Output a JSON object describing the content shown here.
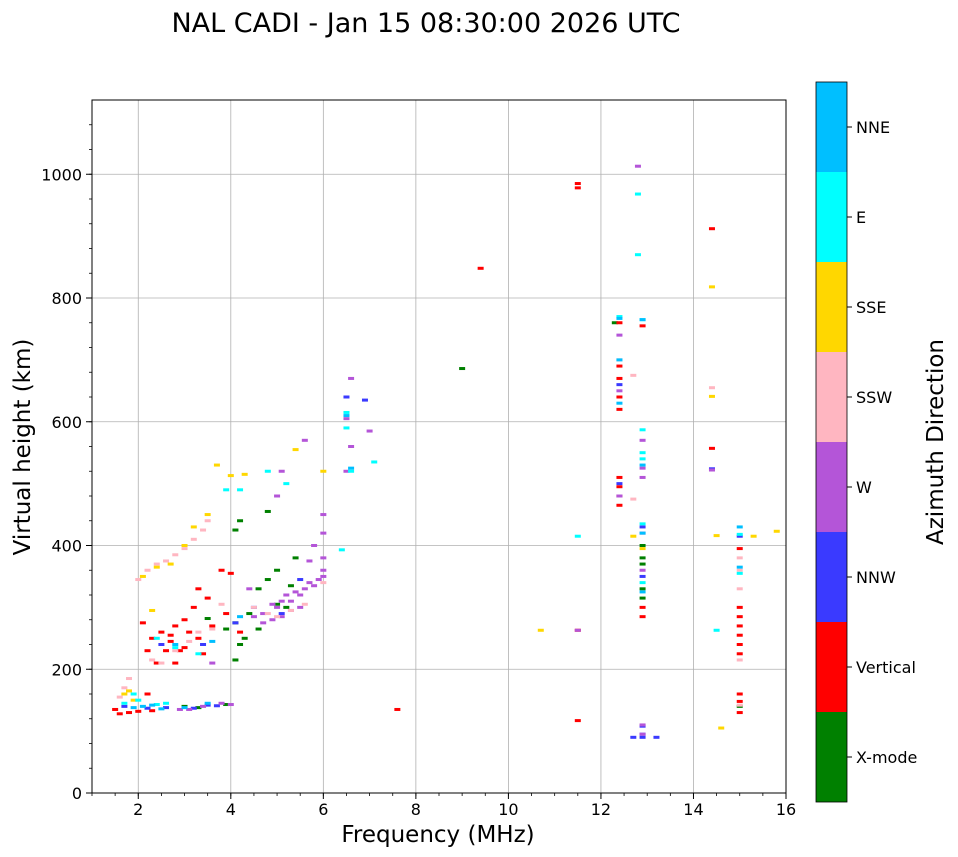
{
  "chart_data": {
    "type": "scatter",
    "title": "NAL CADI - Jan 15 08:30:00 2026 UTC",
    "xlabel": "Frequency (MHz)",
    "ylabel": "Virtual height (km)",
    "xlim": [
      1,
      16
    ],
    "ylim": [
      0,
      1120
    ],
    "xticks": [
      "2",
      "4",
      "6",
      "8",
      "10",
      "12",
      "14",
      "16"
    ],
    "yticks": [
      "0",
      "200",
      "400",
      "600",
      "800",
      "1000"
    ],
    "grid": true,
    "colorbar": {
      "label": "Azimuth Direction",
      "categories": [
        {
          "name": "X-mode",
          "color": "#008000"
        },
        {
          "name": "Vertical",
          "color": "#ff0000"
        },
        {
          "name": "NNW",
          "color": "#3a3aff"
        },
        {
          "name": "W",
          "color": "#b455d8"
        },
        {
          "name": "SSW",
          "color": "#ffb6c1"
        },
        {
          "name": "SSE",
          "color": "#ffd700"
        },
        {
          "name": "E",
          "color": "#00ffff"
        },
        {
          "name": "NNE",
          "color": "#00bfff"
        }
      ]
    },
    "series": [
      {
        "name": "X-mode",
        "points": [
          [
            3.0,
            140
          ],
          [
            3.3,
            138
          ],
          [
            3.9,
            143
          ],
          [
            4.1,
            215
          ],
          [
            4.2,
            240
          ],
          [
            4.1,
            275
          ],
          [
            4.4,
            290
          ],
          [
            4.6,
            330
          ],
          [
            4.8,
            345
          ],
          [
            5.0,
            360
          ],
          [
            5.2,
            300
          ],
          [
            5.4,
            380
          ],
          [
            4.1,
            425
          ],
          [
            4.2,
            440
          ],
          [
            4.8,
            455
          ],
          [
            9.0,
            686
          ],
          [
            12.3,
            760
          ],
          [
            12.9,
            380
          ],
          [
            12.9,
            330
          ],
          [
            12.9,
            315
          ],
          [
            12.9,
            370
          ],
          [
            12.9,
            400
          ],
          [
            15.0,
            140
          ],
          [
            3.5,
            282
          ],
          [
            4.3,
            250
          ],
          [
            4.6,
            265
          ],
          [
            5.0,
            305
          ],
          [
            5.3,
            335
          ],
          [
            3.9,
            265
          ]
        ]
      },
      {
        "name": "Vertical",
        "points": [
          [
            1.5,
            135
          ],
          [
            1.8,
            130
          ],
          [
            2.0,
            132
          ],
          [
            2.3,
            133
          ],
          [
            1.6,
            128
          ],
          [
            2.2,
            160
          ],
          [
            2.3,
            250
          ],
          [
            2.5,
            260
          ],
          [
            2.7,
            245
          ],
          [
            2.9,
            230
          ],
          [
            3.1,
            260
          ],
          [
            3.3,
            250
          ],
          [
            2.4,
            210
          ],
          [
            2.6,
            230
          ],
          [
            2.8,
            270
          ],
          [
            3.0,
            280
          ],
          [
            3.2,
            300
          ],
          [
            3.6,
            270
          ],
          [
            3.9,
            290
          ],
          [
            2.1,
            275
          ],
          [
            3.3,
            330
          ],
          [
            3.5,
            315
          ],
          [
            4.0,
            355
          ],
          [
            3.8,
            360
          ],
          [
            2.2,
            230
          ],
          [
            2.8,
            210
          ],
          [
            4.2,
            260
          ],
          [
            7.6,
            135
          ],
          [
            9.4,
            848
          ],
          [
            11.5,
            985
          ],
          [
            11.5,
            978
          ],
          [
            11.5,
            263
          ],
          [
            11.5,
            117
          ],
          [
            12.4,
            690
          ],
          [
            12.4,
            670
          ],
          [
            12.4,
            640
          ],
          [
            12.4,
            620
          ],
          [
            12.4,
            510
          ],
          [
            12.4,
            495
          ],
          [
            12.4,
            480
          ],
          [
            12.4,
            465
          ],
          [
            12.4,
            760
          ],
          [
            12.9,
            755
          ],
          [
            12.9,
            300
          ],
          [
            12.9,
            285
          ],
          [
            14.4,
            912
          ],
          [
            14.4,
            557
          ],
          [
            15.0,
            300
          ],
          [
            15.0,
            285
          ],
          [
            15.0,
            270
          ],
          [
            15.0,
            255
          ],
          [
            15.0,
            240
          ],
          [
            15.0,
            225
          ],
          [
            15.0,
            395
          ],
          [
            15.0,
            160
          ],
          [
            15.0,
            148
          ],
          [
            15.0,
            130
          ],
          [
            2.7,
            255
          ],
          [
            3.0,
            235
          ],
          [
            3.4,
            225
          ]
        ]
      },
      {
        "name": "NNW",
        "points": [
          [
            1.7,
            140
          ],
          [
            2.2,
            137
          ],
          [
            2.6,
            138
          ],
          [
            3.2,
            137
          ],
          [
            3.5,
            142
          ],
          [
            3.7,
            141
          ],
          [
            2.5,
            240
          ],
          [
            3.4,
            240
          ],
          [
            4.1,
            275
          ],
          [
            4.5,
            300
          ],
          [
            5.1,
            290
          ],
          [
            5.5,
            345
          ],
          [
            6.5,
            640
          ],
          [
            6.9,
            635
          ],
          [
            12.4,
            660
          ],
          [
            12.4,
            500
          ],
          [
            12.9,
            108
          ],
          [
            12.9,
            95
          ],
          [
            12.9,
            90
          ],
          [
            13.2,
            90
          ],
          [
            12.7,
            90
          ],
          [
            14.4,
            524
          ],
          [
            15.0,
            415
          ],
          [
            12.9,
            430
          ],
          [
            12.9,
            350
          ]
        ]
      },
      {
        "name": "W",
        "points": [
          [
            3.1,
            135
          ],
          [
            3.4,
            140
          ],
          [
            3.8,
            145
          ],
          [
            4.0,
            143
          ],
          [
            2.9,
            135
          ],
          [
            3.6,
            210
          ],
          [
            4.5,
            285
          ],
          [
            4.7,
            290
          ],
          [
            4.9,
            305
          ],
          [
            5.0,
            300
          ],
          [
            5.1,
            310
          ],
          [
            5.2,
            320
          ],
          [
            5.3,
            310
          ],
          [
            5.4,
            325
          ],
          [
            5.5,
            320
          ],
          [
            5.6,
            330
          ],
          [
            5.7,
            340
          ],
          [
            5.8,
            335
          ],
          [
            5.9,
            345
          ],
          [
            6.0,
            350
          ],
          [
            6.0,
            360
          ],
          [
            6.0,
            380
          ],
          [
            5.5,
            300
          ],
          [
            5.3,
            295
          ],
          [
            5.1,
            285
          ],
          [
            4.9,
            280
          ],
          [
            4.7,
            275
          ],
          [
            6.0,
            420
          ],
          [
            5.1,
            520
          ],
          [
            5.6,
            570
          ],
          [
            6.6,
            670
          ],
          [
            6.5,
            605
          ],
          [
            6.6,
            560
          ],
          [
            7.0,
            585
          ],
          [
            6.0,
            450
          ],
          [
            5.8,
            400
          ],
          [
            5.0,
            480
          ],
          [
            6.5,
            520
          ],
          [
            12.4,
            740
          ],
          [
            12.4,
            650
          ],
          [
            12.4,
            480
          ],
          [
            12.8,
            1013
          ],
          [
            12.9,
            570
          ],
          [
            12.9,
            525
          ],
          [
            12.9,
            510
          ],
          [
            12.9,
            110
          ],
          [
            12.9,
            95
          ],
          [
            14.4,
            522
          ],
          [
            12.9,
            360
          ],
          [
            12.9,
            420
          ],
          [
            11.5,
            263
          ],
          [
            5.7,
            375
          ],
          [
            4.4,
            330
          ]
        ]
      },
      {
        "name": "SSW",
        "points": [
          [
            1.7,
            170
          ],
          [
            1.8,
            185
          ],
          [
            1.6,
            155
          ],
          [
            2.2,
            360
          ],
          [
            2.4,
            370
          ],
          [
            2.6,
            375
          ],
          [
            2.8,
            385
          ],
          [
            3.0,
            395
          ],
          [
            3.2,
            410
          ],
          [
            3.4,
            425
          ],
          [
            3.5,
            440
          ],
          [
            2.3,
            215
          ],
          [
            2.5,
            210
          ],
          [
            2.8,
            230
          ],
          [
            3.1,
            245
          ],
          [
            3.3,
            260
          ],
          [
            3.6,
            265
          ],
          [
            4.5,
            300
          ],
          [
            4.8,
            290
          ],
          [
            5.0,
            285
          ],
          [
            5.3,
            295
          ],
          [
            5.6,
            305
          ],
          [
            6.0,
            340
          ],
          [
            12.4,
            700
          ],
          [
            12.7,
            675
          ],
          [
            12.7,
            475
          ],
          [
            14.4,
            655
          ],
          [
            15.0,
            380
          ],
          [
            15.0,
            360
          ],
          [
            15.0,
            330
          ],
          [
            15.0,
            215
          ],
          [
            15.0,
            142
          ],
          [
            2.0,
            345
          ],
          [
            3.8,
            305
          ]
        ]
      },
      {
        "name": "SSE",
        "points": [
          [
            1.8,
            165
          ],
          [
            1.9,
            150
          ],
          [
            1.7,
            160
          ],
          [
            2.1,
            350
          ],
          [
            2.4,
            365
          ],
          [
            2.7,
            370
          ],
          [
            3.0,
            400
          ],
          [
            3.2,
            430
          ],
          [
            3.5,
            450
          ],
          [
            3.7,
            530
          ],
          [
            4.0,
            513
          ],
          [
            2.3,
            295
          ],
          [
            10.7,
            263
          ],
          [
            12.7,
            415
          ],
          [
            14.4,
            818
          ],
          [
            14.4,
            641
          ],
          [
            14.5,
            416
          ],
          [
            14.6,
            105
          ],
          [
            15.8,
            423
          ],
          [
            15.3,
            415
          ],
          [
            12.9,
            395
          ],
          [
            4.3,
            515
          ],
          [
            5.4,
            555
          ],
          [
            6.0,
            520
          ]
        ]
      },
      {
        "name": "E",
        "points": [
          [
            1.7,
            145
          ],
          [
            2.0,
            150
          ],
          [
            2.4,
            143
          ],
          [
            2.6,
            145
          ],
          [
            1.9,
            160
          ],
          [
            2.4,
            250
          ],
          [
            2.8,
            235
          ],
          [
            3.3,
            225
          ],
          [
            3.9,
            490
          ],
          [
            4.2,
            490
          ],
          [
            5.2,
            500
          ],
          [
            4.8,
            520
          ],
          [
            6.5,
            615
          ],
          [
            6.5,
            590
          ],
          [
            6.4,
            393
          ],
          [
            6.6,
            520
          ],
          [
            7.1,
            535
          ],
          [
            11.5,
            415
          ],
          [
            12.4,
            770
          ],
          [
            12.8,
            968
          ],
          [
            12.8,
            870
          ],
          [
            12.9,
            765
          ],
          [
            12.9,
            587
          ],
          [
            12.9,
            550
          ],
          [
            12.9,
            540
          ],
          [
            12.9,
            435
          ],
          [
            14.5,
            263
          ],
          [
            15.0,
            418
          ],
          [
            15.0,
            355
          ],
          [
            12.9,
            340
          ]
        ]
      },
      {
        "name": "NNE",
        "points": [
          [
            1.9,
            138
          ],
          [
            2.1,
            140
          ],
          [
            2.3,
            142
          ],
          [
            2.5,
            136
          ],
          [
            3.0,
            138
          ],
          [
            3.5,
            145
          ],
          [
            2.8,
            240
          ],
          [
            3.6,
            245
          ],
          [
            4.2,
            285
          ],
          [
            6.6,
            525
          ],
          [
            6.5,
            610
          ],
          [
            12.4,
            767
          ],
          [
            12.4,
            700
          ],
          [
            12.4,
            630
          ],
          [
            12.9,
            765
          ],
          [
            12.9,
            530
          ],
          [
            12.9,
            420
          ],
          [
            15.0,
            430
          ],
          [
            15.0,
            365
          ],
          [
            12.9,
            325
          ]
        ]
      }
    ]
  }
}
